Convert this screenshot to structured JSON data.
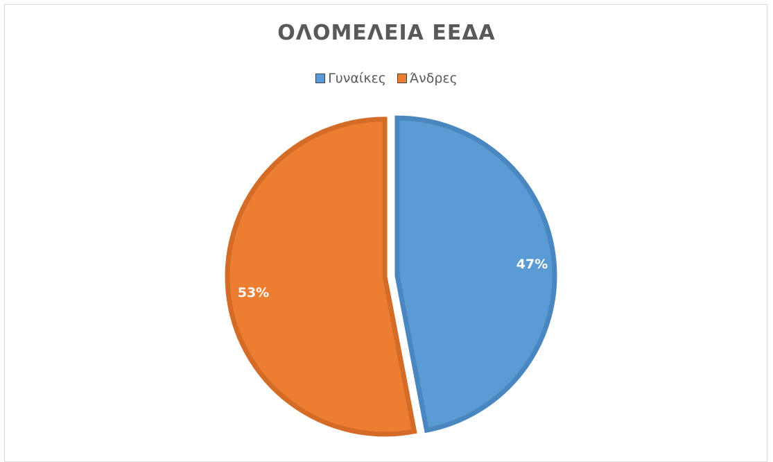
{
  "chart_data": {
    "type": "pie",
    "title": "ΟΛΟΜΕΛΕΙΑ ΕΕΔΑ",
    "legend_position": "top",
    "slices": [
      {
        "name": "Γυναίκες",
        "value": 47,
        "label": "47%",
        "color": "#5b9bd5",
        "edge_color": "#4a86c0"
      },
      {
        "name": "Άνδρες",
        "value": 53,
        "label": "53%",
        "color": "#ed7d31",
        "edge_color": "#d46b26"
      }
    ]
  }
}
